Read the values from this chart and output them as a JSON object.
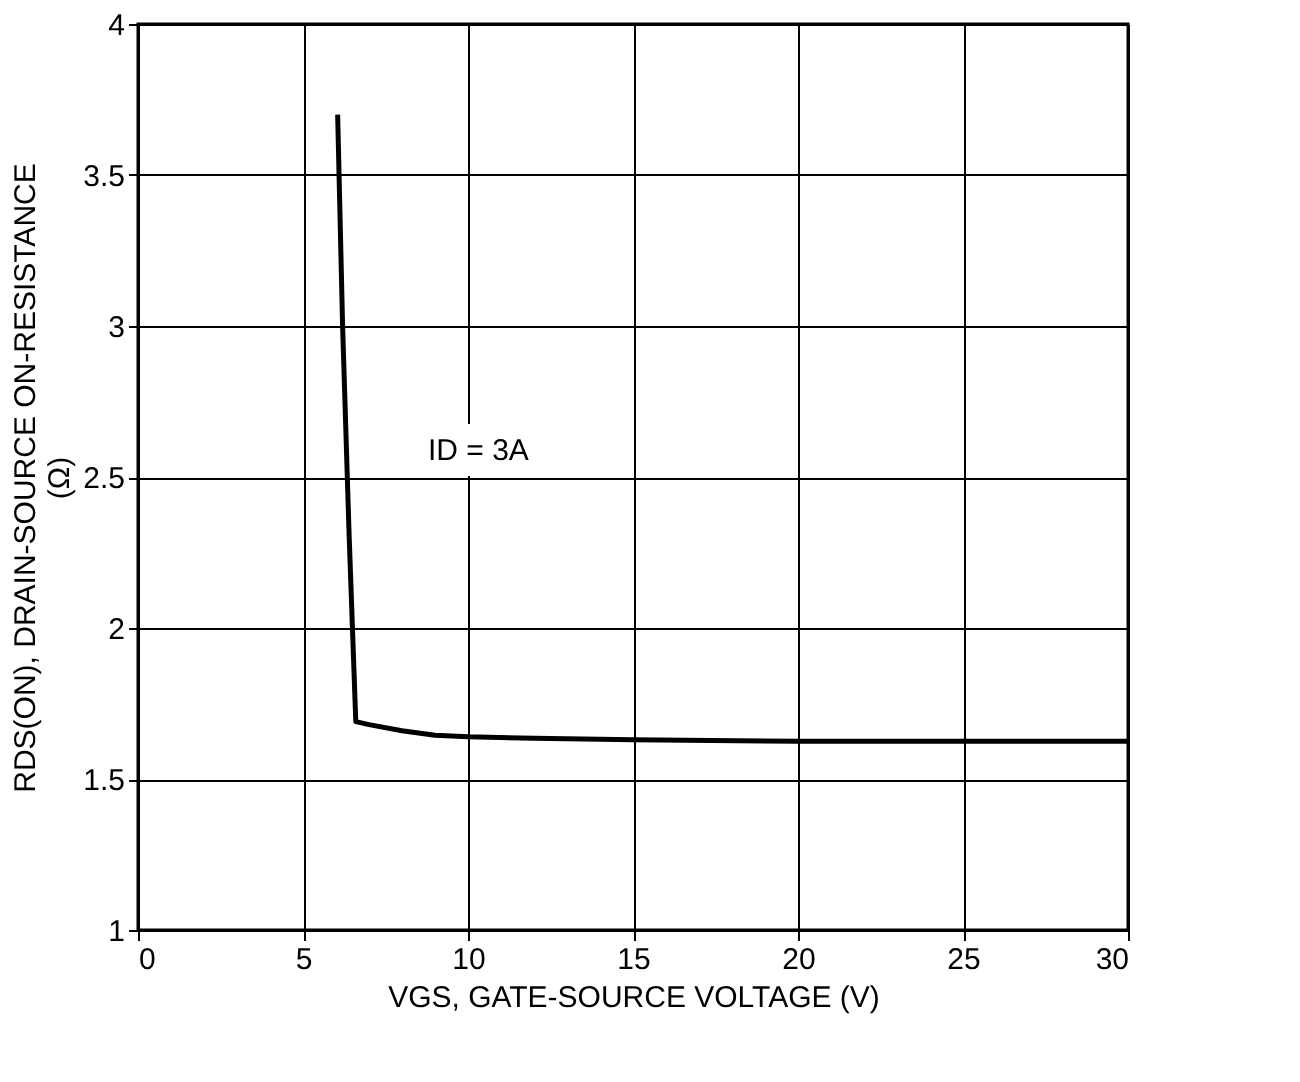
{
  "chart_data": {
    "type": "line",
    "xlabel": "VGS, GATE-SOURCE VOLTAGE (V)",
    "ylabel": "RDS(ON), DRAIN-SOURCE ON-RESISTANCE\n(Ω)",
    "x": [
      6.05,
      6.2,
      6.4,
      6.6,
      7,
      8,
      9,
      10,
      12,
      15,
      20,
      25,
      30
    ],
    "series": [
      {
        "color": "#000000",
        "values": [
          3.7,
          3.0,
          2.3,
          1.69,
          1.68,
          1.66,
          1.645,
          1.64,
          1.635,
          1.63,
          1.625,
          1.625,
          1.625
        ]
      }
    ],
    "xlim": [
      0,
      30
    ],
    "xticks": [
      0,
      5,
      10,
      15,
      20,
      25,
      30
    ],
    "ylim": [
      1,
      4
    ],
    "yticks": [
      1,
      1.5,
      2,
      2.5,
      3,
      3.5,
      4
    ],
    "grid": true,
    "line_style": "solid",
    "marker": "none",
    "annotations": [
      "ID = 3A"
    ]
  }
}
